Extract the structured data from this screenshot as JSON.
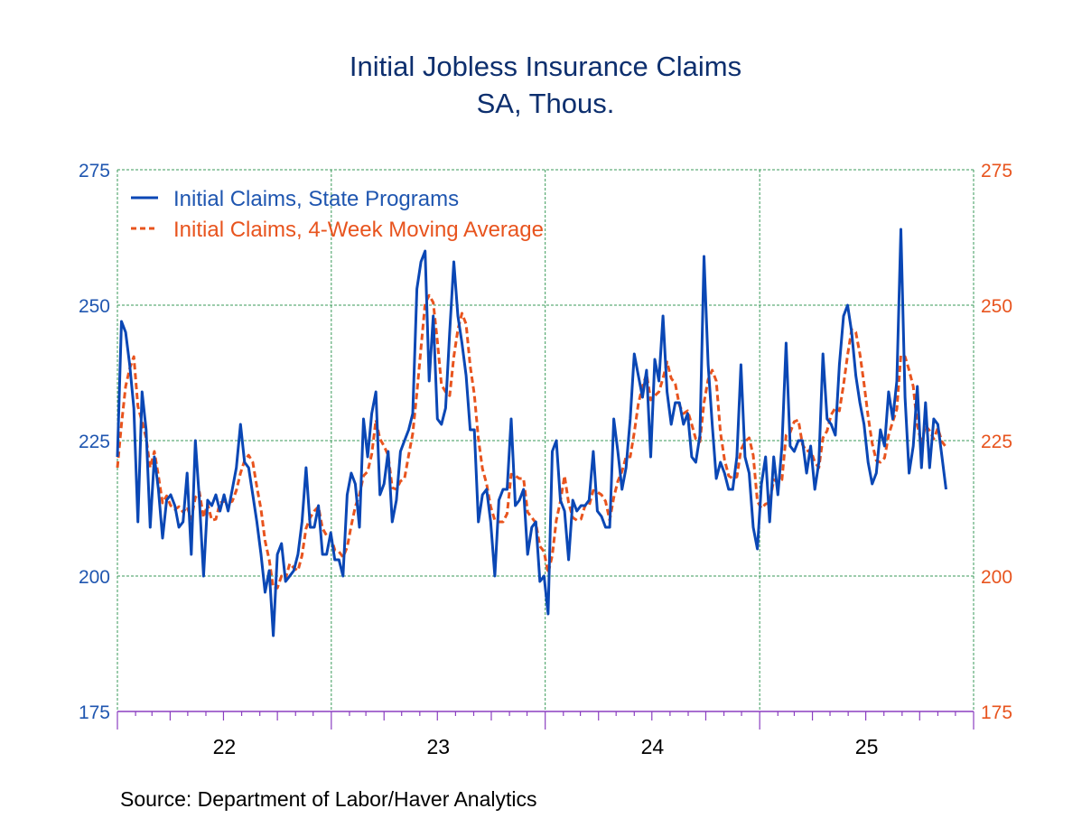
{
  "chart_data": {
    "type": "line",
    "title": "Initial Jobless Insurance Claims",
    "subtitle": "SA, Thous.",
    "source": "Source:  Department of Labor/Haver Analytics",
    "x_start": "2022-01-01",
    "frequency": "weekly",
    "xlim": [
      "2022-01-01",
      "2026-01-01"
    ],
    "x_tick_labels": [
      "22",
      "23",
      "24",
      "25"
    ],
    "ylim": [
      175,
      275
    ],
    "y_ticks": [
      175,
      200,
      225,
      250,
      275
    ],
    "y_tick_labels_left": [
      "175",
      "200",
      "225",
      "250",
      "275"
    ],
    "y_tick_labels_right": [
      "175",
      "200",
      "225",
      "250",
      "275"
    ],
    "grid": true,
    "legend_position": "top-left",
    "colors": {
      "left_axis": "#1f56b0",
      "right_axis": "#e8541e",
      "axis": "#8b3fc0",
      "grid": "#3a9a5a",
      "title": "#0d2f6e"
    },
    "series": [
      {
        "name": "Initial Claims, State Programs",
        "color": "#0a47b5",
        "style": "solid",
        "values": [
          222,
          247,
          245,
          239,
          231,
          210,
          234,
          227,
          209,
          222,
          216,
          207,
          214,
          215,
          213,
          209,
          210,
          219,
          204,
          225,
          214,
          200,
          214,
          213,
          215,
          212,
          215,
          212,
          216,
          220,
          228,
          221,
          220,
          215,
          210,
          204,
          197,
          201,
          189,
          204,
          206,
          199,
          200,
          201,
          204,
          210,
          220,
          209,
          209,
          213,
          204,
          204,
          208,
          203,
          203,
          200,
          215,
          219,
          217,
          209,
          229,
          222,
          230,
          234,
          215,
          217,
          223,
          210,
          214,
          223,
          225,
          227,
          230,
          253,
          258,
          260,
          236,
          248,
          229,
          228,
          231,
          245,
          258,
          248,
          243,
          237,
          227,
          227,
          210,
          215,
          216,
          210,
          200,
          214,
          216,
          216,
          229,
          213,
          214,
          216,
          204,
          209,
          210,
          199,
          200,
          193,
          223,
          225,
          214,
          212,
          203,
          214,
          212,
          213,
          213,
          214,
          223,
          212,
          211,
          209,
          209,
          229,
          223,
          216,
          220,
          229,
          241,
          237,
          233,
          238,
          222,
          240,
          236,
          248,
          234,
          228,
          232,
          232,
          228,
          230,
          222,
          221,
          226,
          259,
          239,
          228,
          218,
          221,
          219,
          216,
          216,
          222,
          239,
          222,
          219,
          209,
          205,
          217,
          222,
          210,
          222,
          215,
          224,
          243,
          224,
          223,
          225,
          225,
          219,
          224,
          216,
          221,
          241,
          229,
          228,
          226,
          239,
          248,
          250,
          245,
          237,
          232,
          228,
          221,
          217,
          219,
          227,
          224,
          234,
          229,
          236,
          264,
          233,
          219,
          224,
          235,
          220,
          232,
          220,
          229,
          228,
          222,
          216
        ]
      },
      {
        "name": "Initial Claims, 4-Week Moving Average",
        "color": "#e8541e",
        "style": "dashed",
        "values": [
          220,
          228,
          235,
          238.3,
          240.5,
          231.3,
          228.5,
          225.5,
          220,
          223,
          218.5,
          213.5,
          214.8,
          213,
          212.3,
          212.8,
          211.8,
          212.8,
          210.5,
          214.5,
          215.5,
          210.8,
          213.3,
          210.3,
          210.5,
          213.5,
          213.8,
          213.5,
          213.8,
          215.8,
          219,
          221.3,
          222.3,
          221,
          216.5,
          212.3,
          206.5,
          203,
          197.8,
          197.8,
          200,
          199.5,
          202.3,
          201.5,
          201,
          203.8,
          208.8,
          210.8,
          212,
          212.8,
          208.8,
          207.5,
          207.3,
          204.8,
          204.5,
          203.5,
          205.3,
          209.3,
          212.8,
          215,
          218.5,
          219.3,
          222.5,
          228.8,
          225.3,
          224,
          222.3,
          216.3,
          216,
          217.5,
          218,
          222.3,
          226.3,
          233.8,
          242,
          250.3,
          251.8,
          250.5,
          243.3,
          235.3,
          234,
          233.3,
          240.5,
          245.5,
          248.5,
          246.5,
          238.8,
          233.5,
          225.3,
          219.8,
          217,
          212.8,
          210.3,
          210,
          210,
          211.5,
          218.8,
          218.5,
          218,
          218,
          211.8,
          210.8,
          209.8,
          205.5,
          204.5,
          200.5,
          203.8,
          210.3,
          213.8,
          218.5,
          213.5,
          210.8,
          210.3,
          210.5,
          213,
          213,
          215.8,
          215.5,
          215,
          213.8,
          210.3,
          214.5,
          217.5,
          219.3,
          222,
          222,
          226.5,
          231.8,
          235,
          237.3,
          232.5,
          233.3,
          234,
          236.5,
          239.5,
          236.5,
          235.5,
          231.5,
          230,
          230.5,
          228,
          225.3,
          224.8,
          232,
          236.3,
          238,
          236,
          226.5,
          221.5,
          218.5,
          218,
          218.3,
          223.3,
          224.8,
          225.5,
          222.3,
          213.8,
          212.5,
          213.3,
          213.5,
          217.8,
          217.3,
          217.8,
          226,
          226.5,
          228.5,
          228.8,
          224.3,
          223,
          223.3,
          221,
          220,
          225.5,
          226.8,
          229.8,
          231,
          230.5,
          235.3,
          240.8,
          245.5,
          245,
          241,
          235.5,
          229.5,
          224.5,
          221.3,
          221,
          221.8,
          226,
          228.5,
          230.8,
          240.8,
          240.5,
          238,
          235,
          227.8,
          224.5,
          227.8,
          226.8,
          225.3,
          227.3,
          224.8,
          223.8
        ]
      }
    ]
  }
}
